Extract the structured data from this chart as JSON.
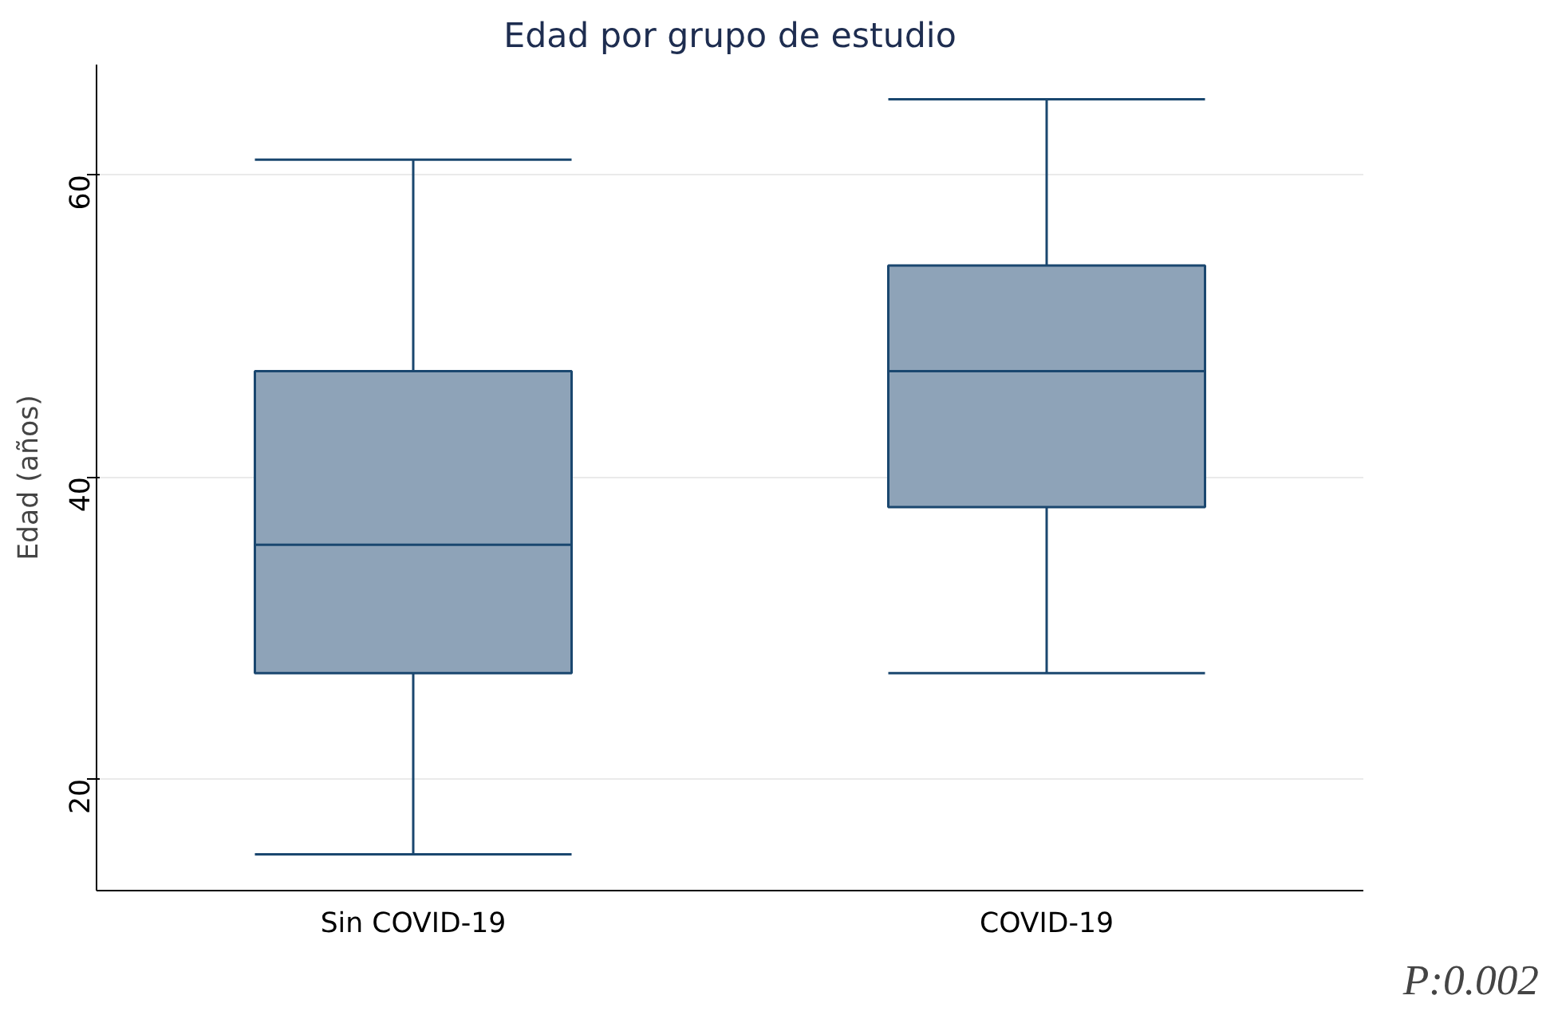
{
  "chart_data": {
    "type": "box",
    "title": "Edad por grupo de estudio",
    "ylabel": "Edad (años)",
    "categories": [
      "Sin COVID-19",
      "COVID-19"
    ],
    "boxes": [
      {
        "low": 15,
        "q1": 27,
        "median": 35.5,
        "q3": 47,
        "high": 61
      },
      {
        "low": 27,
        "q1": 38,
        "median": 47,
        "q3": 54,
        "high": 65
      }
    ],
    "color": "#8ea3b8",
    "ylim": [
      12.6,
      67.3
    ],
    "yticks": [
      20,
      40,
      60
    ],
    "grid": "y",
    "annotations": [
      "P:0.002"
    ]
  }
}
